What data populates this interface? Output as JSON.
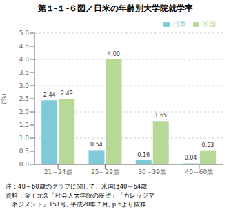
{
  "chart_data": {
    "type": "bar",
    "title": "第１-１-６図／日米の年齢別大学院就学率",
    "categories": [
      "21～24歳",
      "25～29歳",
      "30～39歳",
      "40～60歳"
    ],
    "series": [
      {
        "name": "日本",
        "color": "#7ecad8",
        "values": [
          2.44,
          0.54,
          0.16,
          0.04
        ]
      },
      {
        "name": "米国",
        "color": "#b8d898",
        "values": [
          2.49,
          4.0,
          1.65,
          0.53
        ],
        "value_labels": [
          "2.49",
          "4.00",
          "1.65",
          "0.53"
        ]
      }
    ],
    "ylabel": "(%)",
    "ylim": [
      0,
      5.0
    ],
    "yticks": [
      {
        "value": 0,
        "label": "0.0"
      },
      0.5,
      {
        "value": 1,
        "label": "1.0"
      },
      1.5,
      {
        "value": 2,
        "label": "2.0"
      },
      2.5,
      {
        "value": 3,
        "label": "3.0"
      },
      3.5,
      {
        "value": 4,
        "label": "4.0"
      },
      4.5,
      {
        "value": 5,
        "label": "5.0"
      }
    ],
    "grid": true,
    "legend": "upper right",
    "data_labels": true,
    "annotations": [
      "注：40～60歳のグラフに関して、米国は40～64歳",
      "資料：金子元久「社会人大学院の展望」『カレッジマ",
      "　ネジメント』151号, 平成20年７月, p.6より抜粋"
    ]
  }
}
